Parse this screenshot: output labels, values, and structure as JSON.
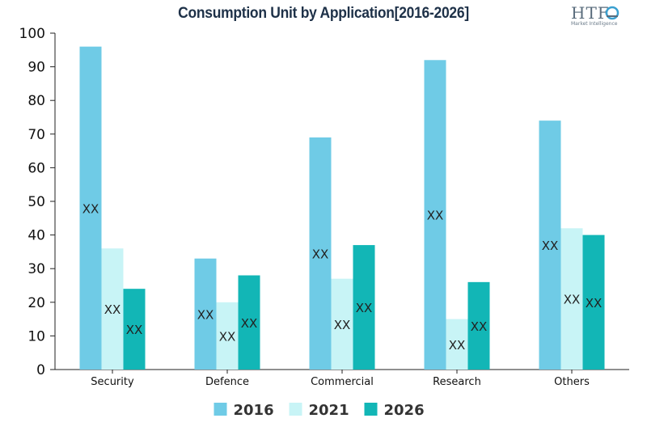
{
  "logo": {
    "text": "HTF",
    "subtitle": "Market Intelligence"
  },
  "chart_data": {
    "type": "bar",
    "title": "Consumption Unit by  Application[2016-2026]",
    "xlabel": "",
    "ylabel": "",
    "categories": [
      "Security",
      "Defence",
      "Commercial",
      "Research",
      "Others"
    ],
    "series": [
      {
        "name": "2016",
        "color": "#6fcbe6",
        "values": [
          96,
          33,
          69,
          92,
          74
        ],
        "labels": [
          "XX",
          "XX",
          "XX",
          "XX",
          "XX"
        ]
      },
      {
        "name": "2021",
        "color": "#c8f4f6",
        "values": [
          36,
          20,
          27,
          15,
          42
        ],
        "labels": [
          "XX",
          "XX",
          "XX",
          "XX",
          "XX"
        ]
      },
      {
        "name": "2026",
        "color": "#12b6b6",
        "values": [
          24,
          28,
          37,
          26,
          40
        ],
        "labels": [
          "XX",
          "XX",
          "XX",
          "XX",
          "XX"
        ]
      }
    ],
    "ylim": [
      0,
      100
    ],
    "yticks": [
      0,
      10,
      20,
      30,
      40,
      50,
      60,
      70,
      80,
      90,
      100
    ],
    "grid": false,
    "legend": "bottom"
  }
}
